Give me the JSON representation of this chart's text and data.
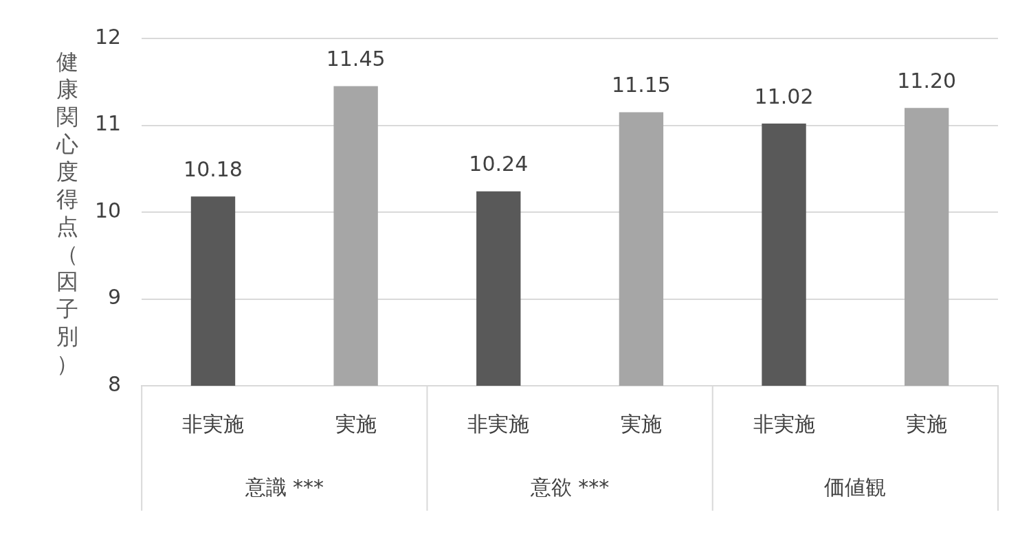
{
  "chart_data": {
    "type": "bar",
    "ylabel": "健康関心度得点（因子別）",
    "categories": [
      "非実施",
      "実施",
      "非実施",
      "実施",
      "非実施",
      "実施"
    ],
    "values": [
      10.18,
      11.45,
      10.24,
      11.15,
      11.02,
      11.2
    ],
    "colors": [
      "#595959",
      "#a6a6a6",
      "#595959",
      "#a6a6a6",
      "#595959",
      "#a6a6a6"
    ],
    "value_labels": [
      "10.18",
      "11.45",
      "10.24",
      "11.15",
      "11.02",
      "11.20"
    ],
    "annotations": [
      "意識 ***",
      "意欲 ***",
      "価値観"
    ],
    "ylim": [
      8,
      12
    ],
    "yticks": [
      8,
      9,
      10,
      11,
      12
    ],
    "grid": "y",
    "legend": false
  }
}
